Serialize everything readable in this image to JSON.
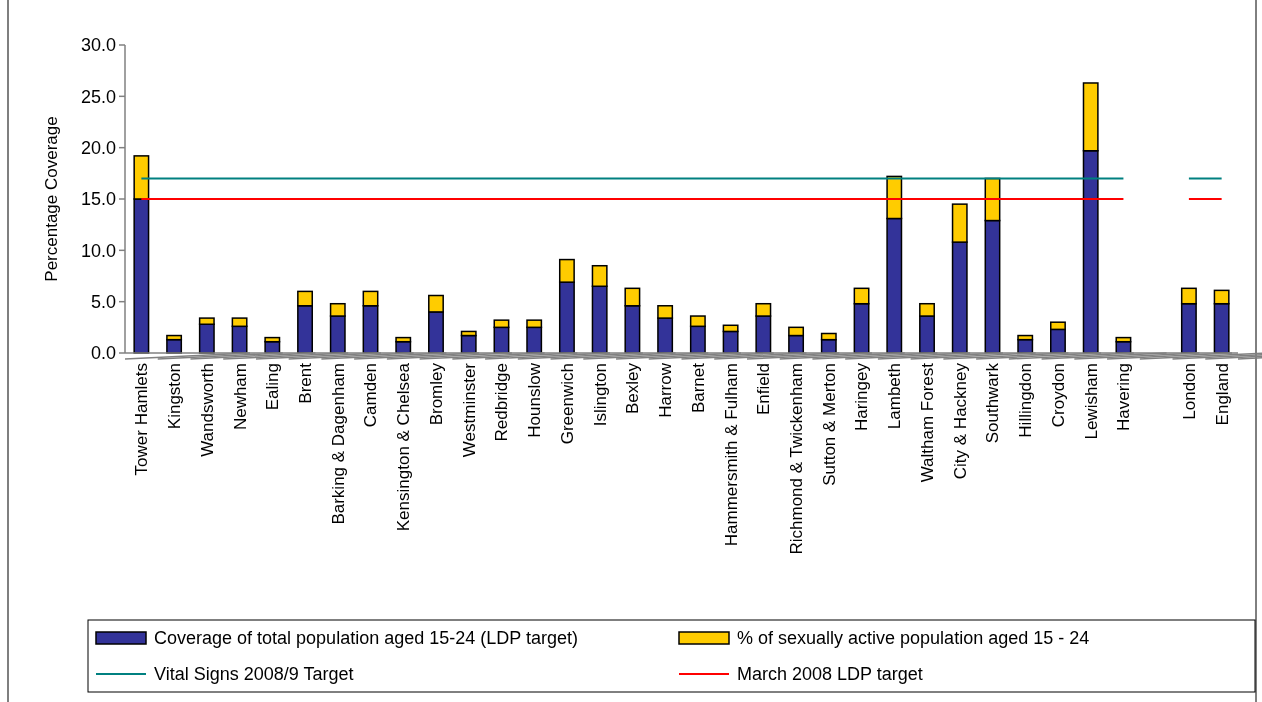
{
  "chart_data": {
    "type": "bar",
    "stacked": true,
    "ylabel": "Percentage Coverage",
    "categories": [
      "Tower Hamlets",
      "Kingston",
      "Wandsworth",
      "Newham",
      "Ealing",
      "Brent",
      "Barking & Dagenham",
      "Camden",
      "Kensington & Chelsea",
      "Bromley",
      "Westminster",
      "Redbridge",
      "Hounslow",
      "Greenwich",
      "Islington",
      "Bexley",
      "Harrow",
      "Barnet",
      "Hammersmith & Fulham",
      "Enfield",
      "Richmond & Twickenham",
      "Sutton & Merton",
      "Haringey",
      "Lambeth",
      "Waltham Forest",
      "City & Hackney",
      "Southwark",
      "Hillingdon",
      "Croydon",
      "Lewisham",
      "Havering",
      null,
      "London",
      "England"
    ],
    "series": [
      {
        "name": "Coverage of total population aged 15-24 (LDP target)",
        "color": "#333399",
        "values": [
          15.0,
          1.3,
          2.8,
          2.6,
          1.1,
          4.6,
          3.6,
          4.6,
          1.1,
          4.0,
          1.7,
          2.5,
          2.5,
          6.9,
          6.5,
          4.6,
          3.4,
          2.6,
          2.1,
          3.6,
          1.7,
          1.3,
          4.8,
          13.1,
          3.6,
          10.8,
          12.9,
          1.3,
          2.3,
          19.7,
          1.1,
          null,
          4.8,
          4.8
        ]
      },
      {
        "name": "% of sexually active population aged 15 - 24",
        "color": "#ffcc00",
        "values": [
          4.2,
          0.4,
          0.6,
          0.8,
          0.4,
          1.4,
          1.2,
          1.4,
          0.4,
          1.6,
          0.4,
          0.7,
          0.7,
          2.2,
          2.0,
          1.7,
          1.2,
          1.0,
          0.6,
          1.2,
          0.8,
          0.6,
          1.5,
          4.1,
          1.2,
          3.7,
          4.1,
          0.4,
          0.7,
          6.6,
          0.4,
          null,
          1.5,
          1.3
        ]
      },
      {
        "name": "Vital Signs 2008/9 Target",
        "type": "line",
        "color": "#008080",
        "values": [
          17,
          17,
          17,
          17,
          17,
          17,
          17,
          17,
          17,
          17,
          17,
          17,
          17,
          17,
          17,
          17,
          17,
          17,
          17,
          17,
          17,
          17,
          17,
          17,
          17,
          17,
          17,
          17,
          17,
          17,
          17,
          null,
          17,
          17
        ]
      },
      {
        "name": "March 2008 LDP target",
        "type": "line",
        "color": "#ff0000",
        "values": [
          15,
          15,
          15,
          15,
          15,
          15,
          15,
          15,
          15,
          15,
          15,
          15,
          15,
          15,
          15,
          15,
          15,
          15,
          15,
          15,
          15,
          15,
          15,
          15,
          15,
          15,
          15,
          15,
          15,
          15,
          15,
          null,
          15,
          15
        ]
      }
    ],
    "ylim": [
      0,
      30
    ],
    "yticks": [
      {
        "value": 0,
        "label": "0.0"
      },
      {
        "value": 5,
        "label": "5.0"
      },
      {
        "value": 10,
        "label": "10.0"
      },
      {
        "value": 15,
        "label": "15.0"
      },
      {
        "value": 20,
        "label": "20.0"
      },
      {
        "value": 25,
        "label": "25.0"
      },
      {
        "value": 30,
        "label": "30.0"
      }
    ],
    "grid": false,
    "legend": "bottom",
    "marker": "none",
    "line_style": "solid"
  }
}
